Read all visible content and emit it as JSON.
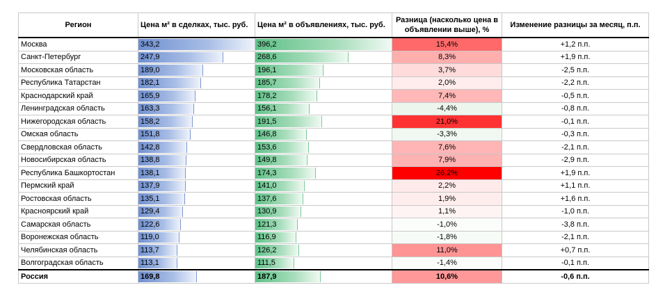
{
  "columns": {
    "region": "Регион",
    "deal_price": "Цена м² в сделках, тыс. руб.",
    "ad_price": "Цена м² в объявлениях, тыс. руб.",
    "difference": "Разница (насколько цена в объявлении выше), %",
    "change": "Изменение разницы за месяц, п.п."
  },
  "colors": {
    "deal_bar": "#6f8fcf",
    "ad_bar": "#5fc088",
    "diff_high": "#ff0000",
    "diff_low": "#ffffff",
    "diff_negative": "#e6f4ea"
  },
  "rows": [
    {
      "region": "Москва",
      "deal": "343,2",
      "ad": "396,2",
      "diff": "15,4%",
      "change": "+1,2 п.п."
    },
    {
      "region": "Санкт-Петербург",
      "deal": "247,9",
      "ad": "268,6",
      "diff": "8,3%",
      "change": "+1,9 п.п."
    },
    {
      "region": "Московская область",
      "deal": "189,0",
      "ad": "196,1",
      "diff": "3,7%",
      "change": "-2,5 п.п."
    },
    {
      "region": "Республика Татарстан",
      "deal": "182,1",
      "ad": "185,7",
      "diff": "2,0%",
      "change": "-2,2 п.п."
    },
    {
      "region": "Краснодарский край",
      "deal": "165,9",
      "ad": "178,2",
      "diff": "7,4%",
      "change": "-0,5 п.п."
    },
    {
      "region": "Ленинградская область",
      "deal": "163,3",
      "ad": "156,1",
      "diff": "-4,4%",
      "change": "-0,8 п.п."
    },
    {
      "region": "Нижегородская область",
      "deal": "158,2",
      "ad": "191,5",
      "diff": "21,0%",
      "change": "-0,1 п.п."
    },
    {
      "region": "Омская область",
      "deal": "151,8",
      "ad": "146,8",
      "diff": "-3,3%",
      "change": "-0,3 п.п."
    },
    {
      "region": "Свердловская область",
      "deal": "142,8",
      "ad": "153,6",
      "diff": "7,6%",
      "change": "-2,1 п.п."
    },
    {
      "region": "Новосибирская область",
      "deal": "138,8",
      "ad": "149,8",
      "diff": "7,9%",
      "change": "-2,9 п.п."
    },
    {
      "region": "Республика Башкортостан",
      "deal": "138,1",
      "ad": "174,3",
      "diff": "26,2%",
      "change": "+1,9 п.п."
    },
    {
      "region": "Пермский край",
      "deal": "137,9",
      "ad": "141,0",
      "diff": "2,2%",
      "change": "+1,1 п.п."
    },
    {
      "region": "Ростовская область",
      "deal": "135,1",
      "ad": "137,6",
      "diff": "1,9%",
      "change": "+1,6 п.п."
    },
    {
      "region": "Красноярский край",
      "deal": "129,4",
      "ad": "130,9",
      "diff": "1,1%",
      "change": "-1,0 п.п."
    },
    {
      "region": "Самарская область",
      "deal": "122,6",
      "ad": "121,3",
      "diff": "-1,0%",
      "change": "-3,8 п.п."
    },
    {
      "region": "Воронежская область",
      "deal": "119,0",
      "ad": "116,9",
      "diff": "-1,8%",
      "change": "-2,1 п.п."
    },
    {
      "region": "Челябинская область",
      "deal": "113,7",
      "ad": "126,2",
      "diff": "11,0%",
      "change": "+0,7 п.п."
    },
    {
      "region": "Волгоградская область",
      "deal": "113,1",
      "ad": "111,5",
      "diff": "-1,4%",
      "change": "-0,1 п.п."
    },
    {
      "region": "Россия",
      "deal": "169,8",
      "ad": "187,9",
      "diff": "10,6%",
      "change": "-0,6 п.п."
    }
  ]
}
